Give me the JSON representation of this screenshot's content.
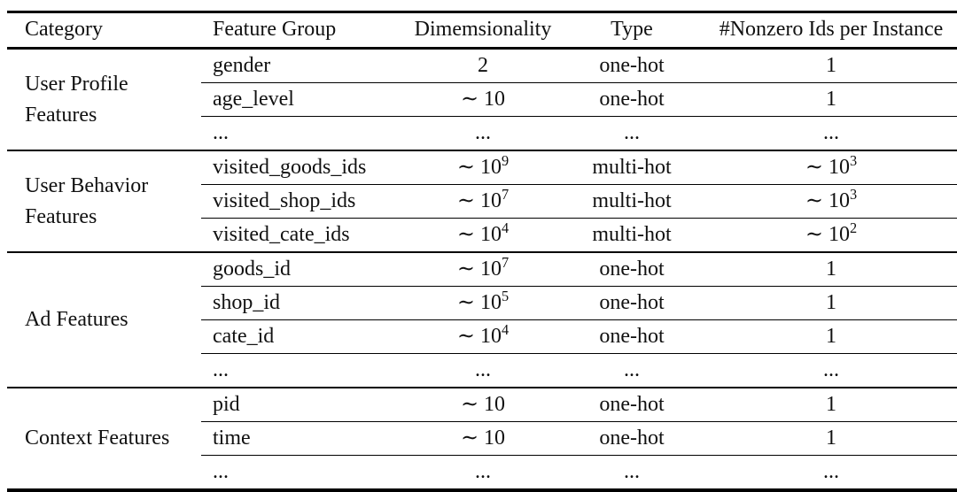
{
  "table": {
    "headers": {
      "category": "Category",
      "feature_group": "Feature Group",
      "dimensionality": "Dimemsionality",
      "type": "Type",
      "nonzero": "#Nonzero Ids per Instance"
    },
    "sections": [
      {
        "category": "User Profile Features",
        "rows": [
          [
            "gender",
            "2",
            "one-hot",
            "1"
          ],
          [
            "age_level",
            "∼ 10",
            "one-hot",
            "1"
          ],
          [
            "...",
            "...",
            "...",
            "..."
          ]
        ]
      },
      {
        "category": "User Behavior Features",
        "rows": [
          [
            "visited_goods_ids",
            "∼ 10^9",
            "multi-hot",
            "∼ 10^3"
          ],
          [
            "visited_shop_ids",
            "∼ 10^7",
            "multi-hot",
            "∼ 10^3"
          ],
          [
            "visited_cate_ids",
            "∼ 10^4",
            "multi-hot",
            "∼ 10^2"
          ]
        ]
      },
      {
        "category": "Ad Features",
        "rows": [
          [
            "goods_id",
            "∼ 10^7",
            "one-hot",
            "1"
          ],
          [
            "shop_id",
            "∼ 10^5",
            "one-hot",
            "1"
          ],
          [
            "cate_id",
            "∼ 10^4",
            "one-hot",
            "1"
          ],
          [
            "...",
            "...",
            "...",
            "..."
          ]
        ]
      },
      {
        "category": "Context Features",
        "rows": [
          [
            "pid",
            "∼ 10",
            "one-hot",
            "1"
          ],
          [
            "time",
            "∼ 10",
            "one-hot",
            "1"
          ],
          [
            "...",
            "...",
            "...",
            "..."
          ]
        ]
      }
    ]
  }
}
